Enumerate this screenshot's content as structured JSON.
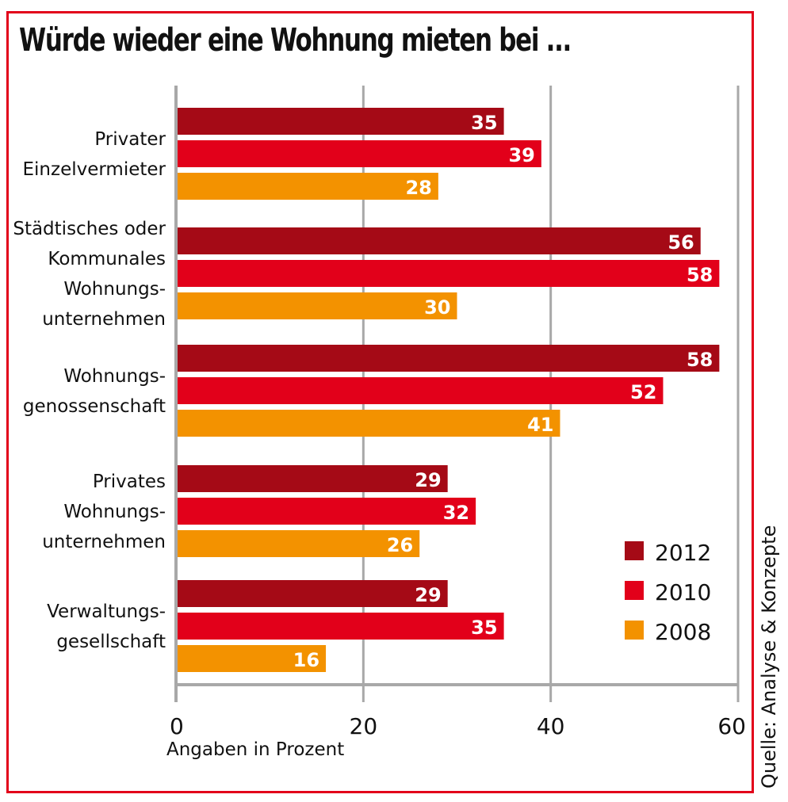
{
  "chart_data": {
    "type": "bar",
    "orientation": "horizontal",
    "title": "Würde wieder eine Wohnung mieten bei ...",
    "xlabel": "Angaben in Prozent",
    "ylabel": "",
    "xlim": [
      0,
      60
    ],
    "xticks": [
      0,
      20,
      40,
      60
    ],
    "grid": true,
    "legend_position": "bottom-right",
    "source": "Quelle: Analyse & Konzepte",
    "categories": [
      [
        "Privater",
        "Einzelvermieter"
      ],
      [
        "Städtisches oder",
        "Kommunales",
        "Wohnungs-",
        "unternehmen"
      ],
      [
        "Wohnungs-",
        "genossenschaft"
      ],
      [
        "Privates",
        "Wohnungs-",
        "unternehmen"
      ],
      [
        "Verwaltungs-",
        "gesellschaft"
      ]
    ],
    "series": [
      {
        "name": "2012",
        "color": "#a50a16",
        "values": [
          35,
          56,
          58,
          29,
          29
        ]
      },
      {
        "name": "2010",
        "color": "#e2001a",
        "values": [
          39,
          58,
          52,
          32,
          35
        ]
      },
      {
        "name": "2008",
        "color": "#f39200",
        "values": [
          28,
          30,
          41,
          26,
          16
        ]
      }
    ]
  },
  "colors": {
    "frame": "#e2001a",
    "grid": "#a8a8a8"
  }
}
